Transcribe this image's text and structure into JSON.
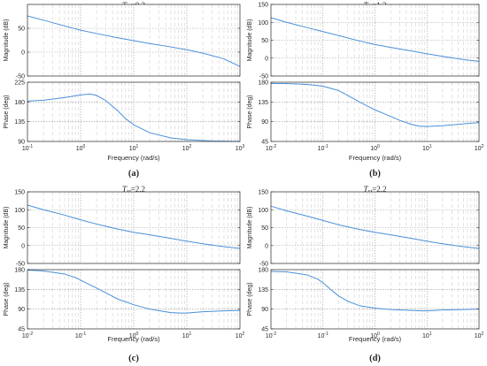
{
  "chart_data": [
    {
      "type": "line",
      "panel": "(a)",
      "title": "T_H=0.2",
      "title_var": "T",
      "title_sub": "H",
      "title_rest": "=0.2",
      "caption": "(a)",
      "xlabel": "Frequency  (rad/s)",
      "xscale": "log",
      "xlim": [
        0.1,
        1000
      ],
      "x_tick_labels": [
        "10-1",
        "100",
        "101",
        "102",
        "103"
      ],
      "magnitude": {
        "ylabel": "Magnitude (dB)",
        "ylim": [
          -50,
          100
        ],
        "y_ticks": [
          -50,
          0,
          50
        ],
        "grid": true,
        "x": [
          0.1,
          0.2,
          0.5,
          1,
          2,
          5,
          10,
          20,
          50,
          100,
          200,
          500,
          1000
        ],
        "y": [
          76,
          67,
          55,
          46,
          39,
          30,
          24,
          18,
          11,
          5,
          -2,
          -14,
          -30
        ]
      },
      "phase": {
        "ylabel": "Phase (deg)",
        "ylim": [
          90,
          225
        ],
        "y_ticks": [
          90,
          135,
          180,
          225
        ],
        "grid": true,
        "x": [
          0.1,
          0.2,
          0.5,
          1,
          1.5,
          2,
          3,
          5,
          7,
          10,
          20,
          50,
          100,
          300,
          1000
        ],
        "y": [
          182,
          184,
          190,
          196,
          198,
          195,
          183,
          160,
          142,
          128,
          110,
          98,
          94,
          91,
          90
        ]
      }
    },
    {
      "type": "line",
      "panel": "(b)",
      "title": "T_H=1.2",
      "title_var": "T",
      "title_sub": "H",
      "title_rest": "=1.2",
      "caption": "(b)",
      "xlabel": "Frequency  (rad/s)",
      "xscale": "log",
      "xlim": [
        0.01,
        100
      ],
      "x_tick_labels": [
        "10-2",
        "10-1",
        "100",
        "101",
        "102"
      ],
      "magnitude": {
        "ylabel": "Magnitude (dB)",
        "ylim": [
          -50,
          150
        ],
        "y_ticks": [
          -50,
          0,
          50,
          100,
          150
        ],
        "grid": true,
        "x": [
          0.01,
          0.02,
          0.05,
          0.1,
          0.2,
          0.5,
          1,
          2,
          5,
          10,
          20,
          50,
          100
        ],
        "y": [
          113,
          100,
          85,
          74,
          63,
          48,
          38,
          30,
          20,
          12,
          5,
          -4,
          -9
        ]
      },
      "phase": {
        "ylabel": "Phase (deg)",
        "ylim": [
          45,
          180
        ],
        "y_ticks": [
          45,
          90,
          135,
          180
        ],
        "grid": true,
        "x": [
          0.01,
          0.02,
          0.05,
          0.1,
          0.2,
          0.3,
          0.5,
          1,
          2,
          3,
          5,
          7,
          10,
          20,
          50,
          100
        ],
        "y": [
          177,
          177,
          175,
          171,
          161,
          150,
          135,
          117,
          102,
          93,
          84,
          80,
          79,
          81,
          85,
          88
        ]
      }
    },
    {
      "type": "line",
      "panel": "(c)",
      "title": "T_H=2.2",
      "title_var": "T",
      "title_sub": "H",
      "title_rest": "=2.2",
      "caption": "(c)",
      "xlabel": "Frequency  (rad/s)",
      "xscale": "log",
      "xlim": [
        0.01,
        100
      ],
      "x_tick_labels": [
        "10-2",
        "10-1",
        "100",
        "101",
        "102"
      ],
      "magnitude": {
        "ylabel": "Magnitude (dB)",
        "ylim": [
          -50,
          150
        ],
        "y_ticks": [
          -50,
          0,
          50,
          100,
          150
        ],
        "grid": true,
        "x": [
          0.01,
          0.02,
          0.05,
          0.1,
          0.2,
          0.5,
          1,
          2,
          5,
          10,
          20,
          50,
          100
        ],
        "y": [
          113,
          100,
          85,
          72,
          60,
          46,
          37,
          30,
          20,
          12,
          5,
          -3,
          -8
        ]
      },
      "phase": {
        "ylabel": "Phase (deg)",
        "ylim": [
          45,
          180
        ],
        "y_ticks": [
          45,
          90,
          135,
          180
        ],
        "grid": true,
        "x": [
          0.01,
          0.02,
          0.05,
          0.08,
          0.1,
          0.2,
          0.5,
          1,
          2,
          5,
          8,
          10,
          20,
          50,
          100
        ],
        "y": [
          179,
          177,
          170,
          162,
          156,
          138,
          113,
          100,
          90,
          82,
          81,
          81,
          84,
          86,
          87
        ]
      }
    },
    {
      "type": "line",
      "panel": "(d)",
      "title": "T_H=2.2",
      "title_var": "T",
      "title_sub": "H",
      "title_rest": "=2.2",
      "caption": "(d)",
      "xlabel": "Frequency  (rad/s)",
      "xscale": "log",
      "xlim": [
        0.01,
        100
      ],
      "x_tick_labels": [
        "10-2",
        "10-1",
        "100",
        "101",
        "102"
      ],
      "magnitude": {
        "ylabel": "Magnitude (dB)",
        "ylim": [
          -50,
          150
        ],
        "y_ticks": [
          -50,
          0,
          50,
          100,
          150
        ],
        "grid": true,
        "x": [
          0.01,
          0.02,
          0.05,
          0.1,
          0.2,
          0.5,
          1,
          2,
          5,
          10,
          20,
          50,
          100
        ],
        "y": [
          110,
          97,
          82,
          70,
          58,
          45,
          37,
          30,
          20,
          12,
          5,
          -3,
          -8
        ]
      },
      "phase": {
        "ylabel": "Phase (deg)",
        "ylim": [
          45,
          180
        ],
        "y_ticks": [
          45,
          90,
          135,
          180
        ],
        "grid": true,
        "x": [
          0.01,
          0.02,
          0.05,
          0.08,
          0.1,
          0.15,
          0.2,
          0.3,
          0.5,
          1,
          2,
          5,
          8,
          10,
          20,
          50,
          100
        ],
        "y": [
          176,
          175,
          168,
          158,
          150,
          132,
          120,
          108,
          98,
          92,
          89,
          87,
          86,
          86,
          88,
          89,
          90
        ]
      }
    }
  ],
  "style": {
    "line_color": "#4a90d9",
    "axis_color": "#262626",
    "grid_color": "#9a9a9a",
    "background": "#ffffff"
  }
}
